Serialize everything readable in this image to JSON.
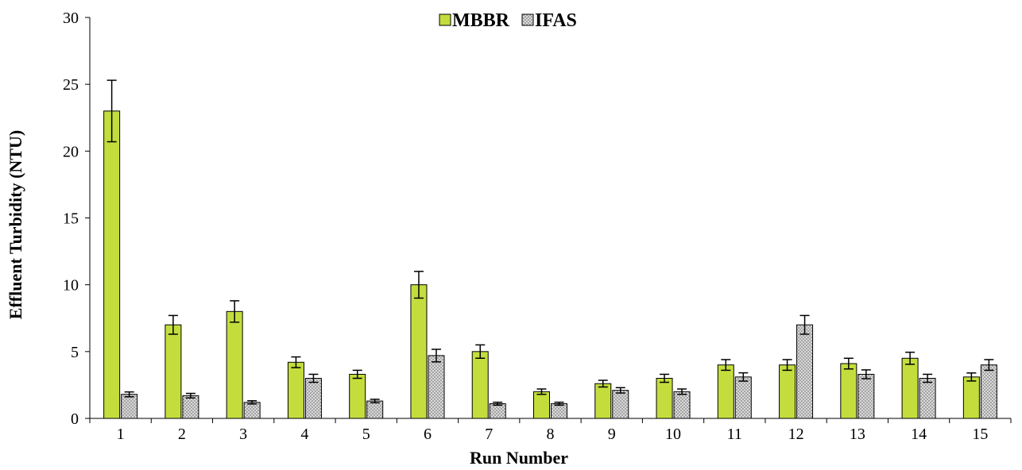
{
  "chart_data": {
    "type": "bar",
    "xlabel": "Run Number",
    "ylabel": "Effluent Turbidity (NTU)",
    "ylim": [
      0,
      30
    ],
    "yticks": [
      0,
      5,
      10,
      15,
      20,
      25,
      30
    ],
    "categories": [
      "1",
      "2",
      "3",
      "4",
      "5",
      "6",
      "7",
      "8",
      "9",
      "10",
      "11",
      "12",
      "13",
      "14",
      "15"
    ],
    "legend_position": "top-center",
    "grid": false,
    "series": [
      {
        "name": "MBBR",
        "color": "#c4dd3d",
        "pattern": "solid",
        "values": [
          23.0,
          7.0,
          8.0,
          4.2,
          3.3,
          10.0,
          5.0,
          2.0,
          2.6,
          3.0,
          4.0,
          4.0,
          4.1,
          4.5,
          3.1
        ],
        "errors": [
          2.3,
          0.7,
          0.8,
          0.4,
          0.3,
          1.0,
          0.5,
          0.2,
          0.25,
          0.3,
          0.4,
          0.4,
          0.4,
          0.45,
          0.3
        ]
      },
      {
        "name": "IFAS",
        "color": "#bfbfbf",
        "pattern": "dotted",
        "values": [
          1.8,
          1.7,
          1.2,
          3.0,
          1.3,
          4.7,
          1.1,
          1.1,
          2.1,
          2.0,
          3.1,
          7.0,
          3.3,
          3.0,
          4.0
        ],
        "errors": [
          0.18,
          0.17,
          0.12,
          0.3,
          0.13,
          0.47,
          0.11,
          0.11,
          0.2,
          0.2,
          0.31,
          0.7,
          0.33,
          0.3,
          0.4
        ]
      }
    ]
  }
}
